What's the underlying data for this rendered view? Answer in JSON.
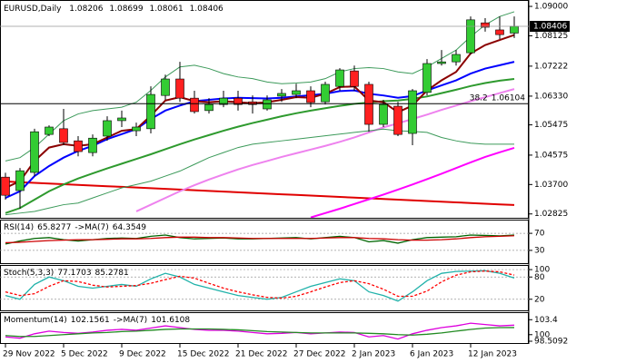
{
  "chart_data": [
    {
      "type": "candlestick",
      "title": "EURUSD,Daily",
      "categories": [
        "29 Nov 2022",
        null,
        null,
        null,
        "5 Dec 2022",
        null,
        null,
        null,
        "9 Dec 2022",
        null,
        null,
        null,
        "15 Dec 2022",
        null,
        null,
        null,
        "21 Dec 2022",
        null,
        null,
        null,
        "27 Dec 2022",
        null,
        null,
        null,
        "2 Jan 2023",
        null,
        null,
        null,
        "6 Jan 2023",
        null,
        null,
        null,
        "12 Jan 2023",
        null,
        null,
        null
      ],
      "open": [
        1.0392,
        1.0352,
        1.0406,
        1.0519,
        1.0536,
        1.05,
        1.0465,
        1.0514,
        1.056,
        1.053,
        1.0536,
        1.0635,
        1.0684,
        1.0627,
        1.059,
        1.0608,
        1.0627,
        1.0616,
        1.0595,
        1.0633,
        1.0638,
        1.0649,
        1.0616,
        1.0662,
        1.0708,
        1.0668,
        1.0549,
        1.0603,
        1.0522,
        1.0644,
        1.073,
        1.0735,
        1.0762,
        1.0851,
        1.083,
        1.08206
      ],
      "high": [
        1.0405,
        1.0419,
        1.0536,
        1.0546,
        1.0595,
        1.0514,
        1.0519,
        1.0573,
        1.059,
        1.0554,
        1.0662,
        1.0697,
        1.0735,
        1.0649,
        1.0627,
        1.0649,
        1.0649,
        1.0635,
        1.0635,
        1.0654,
        1.067,
        1.0662,
        1.0676,
        1.0716,
        1.0724,
        1.0676,
        1.0622,
        1.0616,
        1.0654,
        1.0743,
        1.077,
        1.077,
        1.087,
        1.0865,
        1.087,
        1.08699
      ],
      "low": [
        1.0325,
        1.0298,
        1.0395,
        1.0514,
        1.0487,
        1.0454,
        1.0454,
        1.05,
        1.0541,
        1.0514,
        1.0522,
        1.0622,
        1.0616,
        1.0581,
        1.0581,
        1.06,
        1.059,
        1.0581,
        1.059,
        1.0616,
        1.0627,
        1.06,
        1.0608,
        1.0649,
        1.0649,
        1.0527,
        1.0541,
        1.0514,
        1.0487,
        1.0635,
        1.0724,
        1.0724,
        1.0757,
        1.0825,
        1.0803,
        1.08061
      ],
      "close": [
        1.0338,
        1.0411,
        1.0527,
        1.0541,
        1.0495,
        1.0468,
        1.0508,
        1.056,
        1.0568,
        1.0541,
        1.0638,
        1.0684,
        1.0627,
        1.0587,
        1.0608,
        1.0627,
        1.0608,
        1.0608,
        1.0622,
        1.0641,
        1.0649,
        1.0614,
        1.0668,
        1.0711,
        1.0662,
        1.0549,
        1.0608,
        1.0519,
        1.0649,
        1.073,
        1.0735,
        1.0757,
        1.086,
        1.0838,
        1.0816,
        1.08406
      ],
      "up_color": "#33cc33",
      "down_color": "#ff2020",
      "series": [
        {
          "color": "#e00000",
          "values": [
            1.0379,
            1.0377,
            1.0375,
            1.0373,
            1.0371,
            1.0369,
            1.0367,
            1.0365,
            1.0363,
            1.0361,
            1.0359,
            1.0357,
            1.0355,
            1.0353,
            1.0351,
            1.0349,
            1.0347,
            1.0345,
            1.0343,
            1.0341,
            1.0339,
            1.0337,
            1.0335,
            1.0333,
            1.0331,
            1.0329,
            1.0327,
            1.0325,
            1.0323,
            1.0321,
            1.0319,
            1.0317,
            1.0315,
            1.0313,
            1.0311,
            1.0309
          ]
        },
        {
          "color": "#ff00ff",
          "values": [
            null,
            null,
            null,
            null,
            null,
            null,
            null,
            null,
            null,
            null,
            null,
            null,
            null,
            null,
            null,
            null,
            null,
            null,
            null,
            null,
            null,
            1.0272,
            1.0285,
            1.0298,
            1.0312,
            1.0326,
            1.034,
            1.0355,
            1.037,
            1.0386,
            1.0402,
            1.0419,
            1.0436,
            1.0452,
            1.0466,
            1.0479
          ]
        },
        {
          "color": "#ee82ee",
          "values": [
            null,
            null,
            null,
            null,
            null,
            null,
            null,
            null,
            null,
            1.029,
            1.031,
            1.033,
            1.035,
            1.0368,
            1.0385,
            1.04,
            1.0415,
            1.0428,
            1.044,
            1.0452,
            1.0463,
            1.0474,
            1.0485,
            1.0497,
            1.051,
            1.0525,
            1.054,
            1.0552,
            1.0565,
            1.0578,
            1.0592,
            1.0605,
            1.0618,
            1.063,
            1.0642,
            1.0654
          ]
        },
        {
          "color": "#2e9a2e",
          "values": [
            1.0285,
            1.03,
            1.0325,
            1.035,
            1.037,
            1.0388,
            1.0403,
            1.0418,
            1.0432,
            1.0446,
            1.046,
            1.0475,
            1.049,
            1.0504,
            1.0517,
            1.053,
            1.0542,
            1.0553,
            1.0563,
            1.0573,
            1.0582,
            1.059,
            1.0597,
            1.0604,
            1.061,
            1.0614,
            1.0618,
            1.062,
            1.0625,
            1.0632,
            1.0642,
            1.0652,
            1.0663,
            1.0672,
            1.0679,
            1.0684
          ]
        },
        {
          "color": "#0000ff",
          "values": [
            1.033,
            1.035,
            1.0395,
            1.0425,
            1.045,
            1.047,
            1.0485,
            1.0505,
            1.052,
            1.0535,
            1.0565,
            1.059,
            1.0605,
            1.0618,
            1.0622,
            1.0626,
            1.0628,
            1.0627,
            1.0626,
            1.0628,
            1.0632,
            1.0636,
            1.064,
            1.0648,
            1.065,
            1.064,
            1.0635,
            1.0628,
            1.0633,
            1.065,
            1.0665,
            1.068,
            1.07,
            1.0715,
            1.0725,
            1.0735
          ]
        },
        {
          "color": "#8b0000",
          "values": [
            1.036,
            1.038,
            1.044,
            1.048,
            1.049,
            1.0485,
            1.049,
            1.051,
            1.053,
            1.0535,
            1.0575,
            1.062,
            1.063,
            1.0618,
            1.0615,
            1.0618,
            1.0615,
            1.0612,
            1.0615,
            1.0622,
            1.063,
            1.0628,
            1.064,
            1.066,
            1.0662,
            1.062,
            1.0615,
            1.0585,
            1.0605,
            1.065,
            1.068,
            1.0705,
            1.076,
            1.0785,
            1.08,
            1.0815
          ]
        },
        {
          "color": "#3c9a5a",
          "thin": true,
          "values": [
            1.044,
            1.045,
            1.048,
            1.052,
            1.056,
            1.058,
            1.059,
            1.0595,
            1.06,
            1.0615,
            1.065,
            1.069,
            1.072,
            1.0725,
            1.0715,
            1.07,
            1.069,
            1.0685,
            1.0675,
            1.067,
            1.0672,
            1.0675,
            1.0685,
            1.0705,
            1.0715,
            1.0718,
            1.0715,
            1.0705,
            1.07,
            1.072,
            1.0745,
            1.077,
            1.081,
            1.0845,
            1.087,
            1.0884
          ]
        },
        {
          "color": "#3c9a5a",
          "thin": true,
          "values": [
            1.028,
            1.0285,
            1.029,
            1.03,
            1.031,
            1.0315,
            1.033,
            1.0345,
            1.036,
            1.037,
            1.038,
            1.0395,
            1.041,
            1.043,
            1.045,
            1.0465,
            1.048,
            1.049,
            1.0495,
            1.05,
            1.0505,
            1.051,
            1.0515,
            1.052,
            1.0525,
            1.053,
            1.0535,
            1.053,
            1.0528,
            1.0525,
            1.051,
            1.05,
            1.0493,
            1.049,
            1.049,
            1.049
          ]
        }
      ],
      "annotation": {
        "label": "38.2",
        "value": 1.06104
      },
      "ylim": [
        1.0271,
        1.0919
      ],
      "yticks": [
        {
          "value": 1.09,
          "label": "1.09000"
        },
        {
          "value": 1.08125,
          "label": "1.08125"
        },
        {
          "value": 1.07222,
          "label": "1.07222"
        },
        {
          "value": 1.0633,
          "label": "1.06330"
        },
        {
          "value": 1.05475,
          "label": "1.05475"
        },
        {
          "value": 1.04575,
          "label": "1.04575"
        },
        {
          "value": 1.037,
          "label": "1.03700"
        },
        {
          "value": 1.02825,
          "label": "1.02825"
        }
      ]
    },
    {
      "type": "line",
      "title": "RSI(14)",
      "series": [
        {
          "color": "#006400",
          "values": [
            45,
            52,
            58,
            60,
            55,
            52,
            55,
            58,
            59,
            58,
            63,
            66,
            60,
            57,
            58,
            59,
            57,
            57,
            58,
            59,
            60,
            57,
            60,
            63,
            60,
            50,
            53,
            47,
            55,
            60,
            61,
            62,
            66,
            65,
            64,
            65.8277
          ]
        },
        {
          "name": "->MA(7)",
          "color": "#cc0000",
          "values": [
            48,
            49,
            51,
            53,
            54,
            55,
            55,
            56,
            57,
            57,
            58,
            60,
            61,
            61,
            60,
            60,
            59,
            58,
            58,
            58,
            58,
            58,
            59,
            60,
            60,
            58,
            57,
            55,
            54,
            54,
            55,
            57,
            60,
            62,
            63,
            64.3549
          ]
        }
      ],
      "ylim": [
        0,
        100
      ],
      "yticks": [
        70,
        30
      ],
      "grid": true
    },
    {
      "type": "line",
      "title": "Stoch(5,3,3)",
      "series": [
        {
          "color": "#20b2aa",
          "values": [
            30,
            20,
            60,
            80,
            70,
            55,
            50,
            55,
            60,
            55,
            75,
            90,
            80,
            60,
            50,
            40,
            30,
            25,
            20,
            25,
            40,
            55,
            65,
            75,
            70,
            40,
            30,
            15,
            40,
            70,
            90,
            95,
            96,
            97,
            90,
            77.1703
          ]
        },
        {
          "color": "#ff0000",
          "style": "dashed",
          "values": [
            40,
            30,
            35,
            55,
            70,
            68,
            58,
            53,
            55,
            57,
            63,
            73,
            82,
            77,
            63,
            50,
            40,
            32,
            25,
            23,
            28,
            40,
            53,
            65,
            70,
            62,
            47,
            28,
            28,
            42,
            67,
            85,
            94,
            96,
            94,
            85.2781
          ]
        }
      ],
      "ylim": [
        -10,
        110
      ],
      "yticks": [
        100,
        80,
        20
      ],
      "grid": true
    },
    {
      "type": "line",
      "title": "Momentum(14)",
      "series": [
        {
          "color": "#dd00dd",
          "values": [
            99.5,
            99.2,
            100.2,
            100.8,
            100.5,
            100.3,
            100.6,
            101.0,
            101.2,
            101.0,
            101.5,
            102.0,
            101.6,
            101.2,
            101.0,
            101.0,
            100.8,
            100.5,
            100.2,
            100.3,
            100.5,
            100.2,
            100.4,
            100.6,
            100.5,
            99.5,
            99.8,
            99.0,
            100.2,
            101.0,
            101.6,
            102.0,
            102.6,
            102.3,
            102.0,
            102.1561
          ]
        },
        {
          "name": "->MA(7)",
          "color": "#228b22",
          "values": [
            99.8,
            99.6,
            99.6,
            99.8,
            100.0,
            100.2,
            100.4,
            100.5,
            100.7,
            100.8,
            101.0,
            101.2,
            101.3,
            101.3,
            101.3,
            101.2,
            101.1,
            100.9,
            100.7,
            100.6,
            100.5,
            100.4,
            100.4,
            100.4,
            100.4,
            100.3,
            100.2,
            100.0,
            99.9,
            100.1,
            100.4,
            100.8,
            101.2,
            101.5,
            101.6,
            101.6108
          ]
        }
      ],
      "ylim": [
        98.1,
        104.9
      ],
      "yticks": [
        103.4,
        100,
        98.5092
      ],
      "grid": false
    }
  ]
}
